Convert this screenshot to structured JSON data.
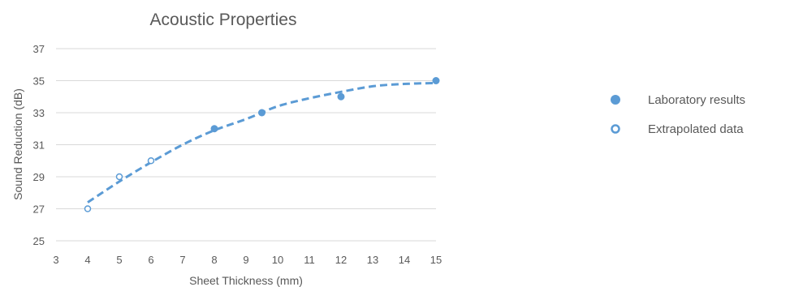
{
  "chart_data": {
    "type": "scatter",
    "title": "Acoustic Properties",
    "xlabel": "Sheet Thickness (mm)",
    "ylabel": "Sound Reduction (dB)",
    "xlim": [
      3,
      15
    ],
    "ylim": [
      25,
      37
    ],
    "x_ticks": [
      3,
      4,
      5,
      6,
      7,
      8,
      9,
      10,
      11,
      12,
      13,
      14,
      15
    ],
    "y_ticks": [
      25,
      27,
      29,
      31,
      33,
      35,
      37
    ],
    "grid": "horizontal",
    "legend_position": "right",
    "series": [
      {
        "name": "Laboratory results",
        "marker": "filled-circle",
        "color": "#5b9bd5",
        "points": [
          [
            8,
            32
          ],
          [
            9.5,
            33
          ],
          [
            12,
            34
          ],
          [
            15,
            35
          ]
        ]
      },
      {
        "name": "Extrapolated data",
        "marker": "hollow-circle",
        "color": "#5b9bd5",
        "points": [
          [
            4,
            27
          ],
          [
            5,
            29
          ],
          [
            6,
            30
          ]
        ]
      }
    ],
    "trendline": {
      "style": "dashed",
      "color": "#5b9bd5",
      "points": [
        [
          4,
          27.4
        ],
        [
          5,
          28.7
        ],
        [
          6,
          29.9
        ],
        [
          7,
          31.0
        ],
        [
          8,
          31.9
        ],
        [
          9,
          32.6
        ],
        [
          10,
          33.4
        ],
        [
          11,
          33.9
        ],
        [
          12,
          34.3
        ],
        [
          13,
          34.65
        ],
        [
          14,
          34.8
        ],
        [
          15,
          34.85
        ]
      ]
    }
  }
}
